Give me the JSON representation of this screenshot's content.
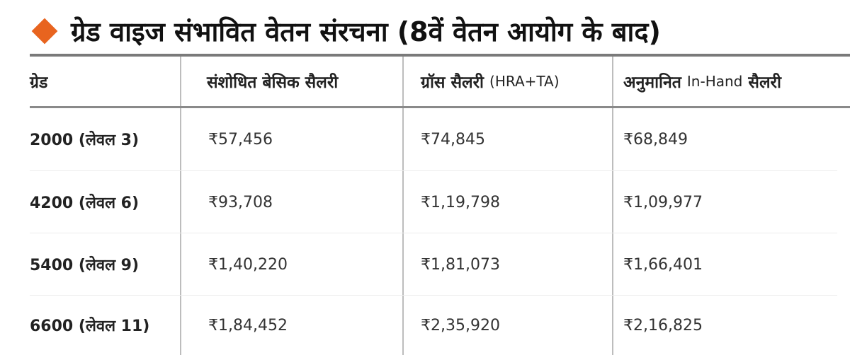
{
  "title": "ग्रेड वाइज संभावित वेतन संरचना (8वें वेतन आयोग के बाद)",
  "icon": "orange-diamond-icon",
  "accent_color": "#e8641f",
  "table": {
    "headers": [
      {
        "main": "ग्रेड"
      },
      {
        "main": "संशोधित बेसिक सैलरी"
      },
      {
        "main": "ग्रॉस सैलरी",
        "suffix": "(HRA+TA)"
      },
      {
        "prefix": "अनुमानित",
        "mid": "In-Hand",
        "main": "सैलरी"
      }
    ],
    "rows": [
      {
        "grade": "2000 (लेवल 3)",
        "basic": "₹57,456",
        "gross": "₹74,845",
        "inhand": "₹68,849"
      },
      {
        "grade": "4200 (लेवल 6)",
        "basic": "₹93,708",
        "gross": "₹1,19,798",
        "inhand": "₹1,09,977"
      },
      {
        "grade": "5400 (लेवल 9)",
        "basic": "₹1,40,220",
        "gross": "₹1,81,073",
        "inhand": "₹1,66,401"
      },
      {
        "grade": "6600 (लेवल 11)",
        "basic": "₹1,84,452",
        "gross": "₹2,35,920",
        "inhand": "₹2,16,825"
      }
    ]
  }
}
